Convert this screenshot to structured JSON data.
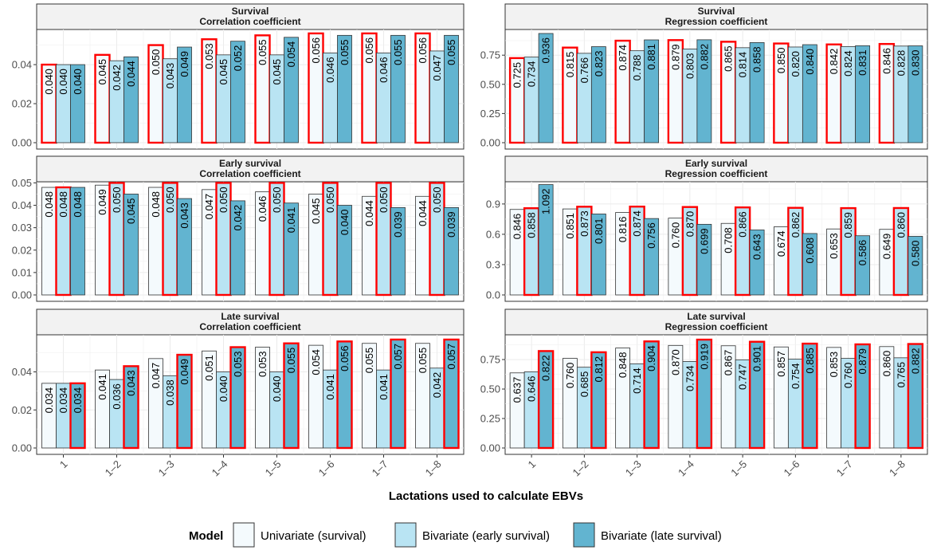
{
  "figure": {
    "xlabel": "Lactations used to calculate EBVs",
    "categories": [
      "1",
      "1–2",
      "1–3",
      "1–4",
      "1–5",
      "1–6",
      "1–7",
      "1–8"
    ]
  },
  "legend": {
    "title": "Model",
    "items": [
      {
        "label": "Univariate (survival)",
        "color": "#f4fafd"
      },
      {
        "label": "Bivariate (early survival)",
        "color": "#b9e4f3"
      },
      {
        "label": "Bivariate (late survival)",
        "color": "#62b4d0"
      }
    ]
  },
  "highlight_color": "#ff0000",
  "chart_data": [
    {
      "type": "bar",
      "strip_title": [
        "Survival",
        "Correlation coefficient"
      ],
      "categories": [
        "1",
        "1–2",
        "1–3",
        "1–4",
        "1–5",
        "1–6",
        "1–7",
        "1–8"
      ],
      "ylim": [
        0,
        0.058
      ],
      "yticks": [
        0.0,
        0.02,
        0.04
      ],
      "ytick_labels": [
        "0.00",
        "0.02",
        "0.04"
      ],
      "highlight_series": 0,
      "series": [
        {
          "name": "Univariate (survival)",
          "values": [
            0.04,
            0.045,
            0.05,
            0.053,
            0.055,
            0.056,
            0.056,
            0.056
          ],
          "labels": [
            "0.040",
            "0.045",
            "0.050",
            "0.053",
            "0.055",
            "0.056",
            "0.056",
            "0.056"
          ]
        },
        {
          "name": "Bivariate (early survival)",
          "values": [
            0.04,
            0.042,
            0.043,
            0.045,
            0.045,
            0.046,
            0.046,
            0.047
          ],
          "labels": [
            "0.040",
            "0.042",
            "0.043",
            "0.045",
            "0.045",
            "0.046",
            "0.046",
            "0.047"
          ]
        },
        {
          "name": "Bivariate (late survival)",
          "values": [
            0.04,
            0.044,
            0.049,
            0.052,
            0.054,
            0.055,
            0.055,
            0.055
          ],
          "labels": [
            "0.040",
            "0.044",
            "0.049",
            "0.052",
            "0.054",
            "0.055",
            "0.055",
            "0.055"
          ]
        }
      ]
    },
    {
      "type": "bar",
      "strip_title": [
        "Survival",
        "Regression coefficient"
      ],
      "categories": [
        "1",
        "1–2",
        "1–3",
        "1–4",
        "1–5",
        "1–6",
        "1–7",
        "1–8"
      ],
      "ylim": [
        0,
        0.97
      ],
      "yticks": [
        0.0,
        0.25,
        0.5,
        0.75
      ],
      "ytick_labels": [
        "0.00",
        "0.25",
        "0.50",
        "0.75"
      ],
      "highlight_series": 0,
      "series": [
        {
          "name": "Univariate (survival)",
          "values": [
            0.725,
            0.815,
            0.874,
            0.879,
            0.865,
            0.85,
            0.842,
            0.846
          ],
          "labels": [
            "0.725",
            "0.815",
            "0.874",
            "0.879",
            "0.865",
            "0.850",
            "0.842",
            "0.846"
          ]
        },
        {
          "name": "Bivariate (early survival)",
          "values": [
            0.734,
            0.766,
            0.788,
            0.803,
            0.814,
            0.82,
            0.824,
            0.828
          ],
          "labels": [
            "0.734",
            "0.766",
            "0.788",
            "0.803",
            "0.814",
            "0.820",
            "0.824",
            "0.828"
          ]
        },
        {
          "name": "Bivariate (late survival)",
          "values": [
            0.936,
            0.823,
            0.881,
            0.882,
            0.858,
            0.84,
            0.831,
            0.83
          ],
          "labels": [
            "0.936",
            "0.823",
            "0.881",
            "0.882",
            "0.858",
            "0.840",
            "0.831",
            "0.830"
          ]
        }
      ]
    },
    {
      "type": "bar",
      "strip_title": [
        "Early survival",
        "Correlation coefficient"
      ],
      "categories": [
        "1",
        "1–2",
        "1–3",
        "1–4",
        "1–5",
        "1–6",
        "1–7",
        "1–8"
      ],
      "ylim": [
        0,
        0.0505
      ],
      "yticks": [
        0.0,
        0.01,
        0.02,
        0.03,
        0.04,
        0.05
      ],
      "ytick_labels": [
        "0.00",
        "0.01",
        "0.02",
        "0.03",
        "0.04",
        "0.05"
      ],
      "highlight_series": 1,
      "series": [
        {
          "name": "Univariate (survival)",
          "values": [
            0.048,
            0.049,
            0.048,
            0.047,
            0.046,
            0.045,
            0.044,
            0.044
          ],
          "labels": [
            "0.048",
            "0.049",
            "0.048",
            "0.047",
            "0.046",
            "0.045",
            "0.044",
            "0.044"
          ]
        },
        {
          "name": "Bivariate (early survival)",
          "values": [
            0.048,
            0.05,
            0.05,
            0.05,
            0.05,
            0.05,
            0.05,
            0.05
          ],
          "labels": [
            "0.048",
            "0.050",
            "0.050",
            "0.050",
            "0.050",
            "0.050",
            "0.050",
            "0.050"
          ]
        },
        {
          "name": "Bivariate (late survival)",
          "values": [
            0.048,
            0.045,
            0.043,
            0.042,
            0.041,
            0.04,
            0.039,
            0.039
          ],
          "labels": [
            "0.048",
            "0.045",
            "0.043",
            "0.042",
            "0.041",
            "0.040",
            "0.039",
            "0.039"
          ]
        }
      ]
    },
    {
      "type": "bar",
      "strip_title": [
        "Early survival",
        "Regression coefficient"
      ],
      "categories": [
        "1",
        "1–2",
        "1–3",
        "1–4",
        "1–5",
        "1–6",
        "1–7",
        "1–8"
      ],
      "ylim": [
        0,
        1.12
      ],
      "yticks": [
        0.0,
        0.3,
        0.6,
        0.9
      ],
      "ytick_labels": [
        "0.0",
        "0.3",
        "0.6",
        "0.9"
      ],
      "highlight_series": 1,
      "series": [
        {
          "name": "Univariate (survival)",
          "values": [
            0.846,
            0.851,
            0.816,
            0.76,
            0.708,
            0.674,
            0.653,
            0.649
          ],
          "labels": [
            "0.846",
            "0.851",
            "0.816",
            "0.760",
            "0.708",
            "0.674",
            "0.653",
            "0.649"
          ]
        },
        {
          "name": "Bivariate (early survival)",
          "values": [
            0.858,
            0.873,
            0.874,
            0.87,
            0.866,
            0.862,
            0.859,
            0.86
          ],
          "labels": [
            "0.858",
            "0.873",
            "0.874",
            "0.870",
            "0.866",
            "0.862",
            "0.859",
            "0.860"
          ]
        },
        {
          "name": "Bivariate (late survival)",
          "values": [
            1.092,
            0.801,
            0.756,
            0.699,
            0.643,
            0.608,
            0.586,
            0.58
          ],
          "labels": [
            "1.092",
            "0.801",
            "0.756",
            "0.699",
            "0.643",
            "0.608",
            "0.586",
            "0.580"
          ]
        }
      ]
    },
    {
      "type": "bar",
      "strip_title": [
        "Late survival",
        "Correlation coefficient"
      ],
      "categories": [
        "1",
        "1–2",
        "1–3",
        "1–4",
        "1–5",
        "1–6",
        "1–7",
        "1–8"
      ],
      "ylim": [
        0,
        0.0595
      ],
      "yticks": [
        0.0,
        0.02,
        0.04
      ],
      "ytick_labels": [
        "0.00",
        "0.02",
        "0.04"
      ],
      "highlight_series": 2,
      "series": [
        {
          "name": "Univariate (survival)",
          "values": [
            0.034,
            0.041,
            0.047,
            0.051,
            0.053,
            0.054,
            0.055,
            0.055
          ],
          "labels": [
            "0.034",
            "0.041",
            "0.047",
            "0.051",
            "0.053",
            "0.054",
            "0.055",
            "0.055"
          ]
        },
        {
          "name": "Bivariate (early survival)",
          "values": [
            0.034,
            0.036,
            0.038,
            0.04,
            0.04,
            0.041,
            0.041,
            0.042
          ],
          "labels": [
            "0.034",
            "0.036",
            "0.038",
            "0.040",
            "0.040",
            "0.041",
            "0.041",
            "0.042"
          ]
        },
        {
          "name": "Bivariate (late survival)",
          "values": [
            0.034,
            0.043,
            0.049,
            0.053,
            0.055,
            0.056,
            0.057,
            0.057
          ],
          "labels": [
            "0.034",
            "0.043",
            "0.049",
            "0.053",
            "0.055",
            "0.056",
            "0.057",
            "0.057"
          ]
        }
      ]
    },
    {
      "type": "bar",
      "strip_title": [
        "Late survival",
        "Regression coefficient"
      ],
      "categories": [
        "1",
        "1–2",
        "1–3",
        "1–4",
        "1–5",
        "1–6",
        "1–7",
        "1–8"
      ],
      "ylim": [
        0,
        0.96
      ],
      "yticks": [
        0.0,
        0.25,
        0.5,
        0.75
      ],
      "ytick_labels": [
        "0.00",
        "0.25",
        "0.50",
        "0.75"
      ],
      "highlight_series": 2,
      "series": [
        {
          "name": "Univariate (survival)",
          "values": [
            0.637,
            0.76,
            0.848,
            0.87,
            0.867,
            0.857,
            0.853,
            0.86
          ],
          "labels": [
            "0.637",
            "0.760",
            "0.848",
            "0.870",
            "0.867",
            "0.857",
            "0.853",
            "0.860"
          ]
        },
        {
          "name": "Bivariate (early survival)",
          "values": [
            0.646,
            0.685,
            0.714,
            0.734,
            0.747,
            0.754,
            0.76,
            0.765
          ],
          "labels": [
            "0.646",
            "0.685",
            "0.714",
            "0.734",
            "0.747",
            "0.754",
            "0.760",
            "0.765"
          ]
        },
        {
          "name": "Bivariate (late survival)",
          "values": [
            0.822,
            0.812,
            0.904,
            0.919,
            0.901,
            0.885,
            0.879,
            0.882
          ],
          "labels": [
            "0.822",
            "0.812",
            "0.904",
            "0.919",
            "0.901",
            "0.885",
            "0.879",
            "0.882"
          ]
        }
      ]
    }
  ]
}
